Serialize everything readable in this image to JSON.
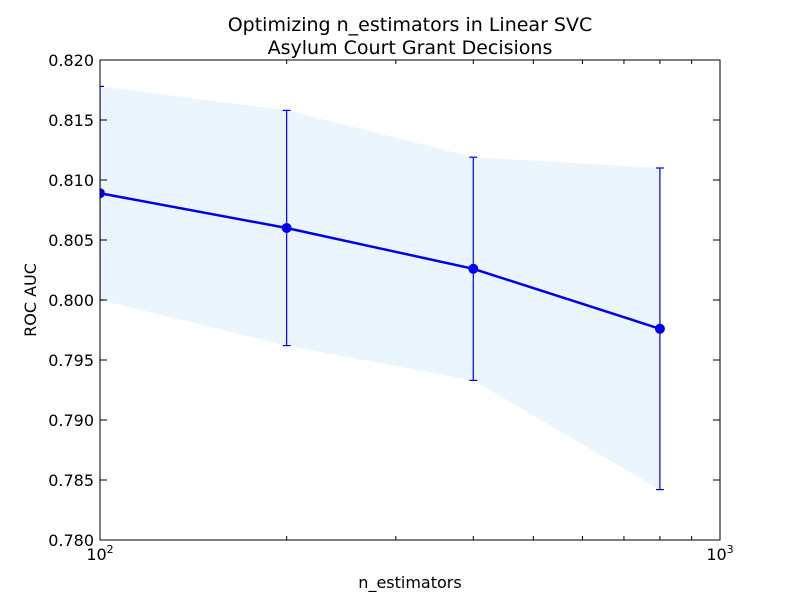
{
  "chart_data": {
    "type": "line",
    "title": [
      "Optimizing n_estimators in Linear SVC",
      "Asylum Court Grant Decisions"
    ],
    "xlabel": "n_estimators",
    "ylabel": "ROC AUC",
    "x_scale": "log",
    "xlim": [
      100,
      1000
    ],
    "ylim": [
      0.78,
      0.82
    ],
    "x_ticks": [
      {
        "value": 100,
        "base": "10",
        "exp": "2"
      },
      {
        "value": 1000,
        "base": "10",
        "exp": "3"
      }
    ],
    "y_ticks": [
      "0.780",
      "0.785",
      "0.790",
      "0.795",
      "0.800",
      "0.805",
      "0.810",
      "0.815",
      "0.820"
    ],
    "grid": false,
    "series": [
      {
        "x": [
          100,
          200,
          400,
          800
        ],
        "y": [
          0.8089,
          0.806,
          0.8026,
          0.7976
        ],
        "yerr_low": [
          0.8,
          0.7962,
          0.7933,
          0.7842
        ],
        "yerr_high": [
          0.8178,
          0.8158,
          0.8119,
          0.811
        ],
        "color": "#0000ee",
        "band_color": "#eaf5fd"
      }
    ]
  }
}
